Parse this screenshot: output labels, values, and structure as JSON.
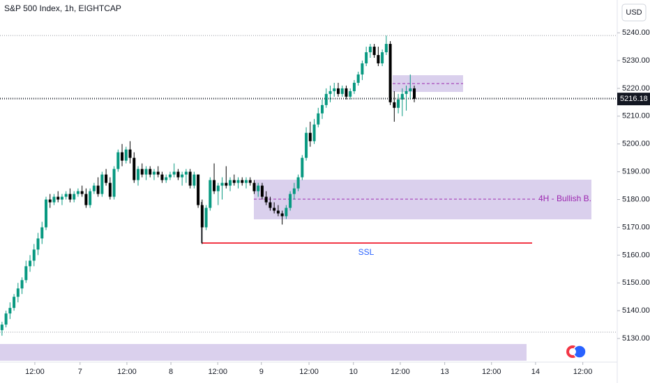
{
  "chart_data": {
    "type": "candlestick",
    "title": "S&P 500 Index, 1h, EIGHTCAP",
    "currency_button": "USD",
    "annotations": [
      "4H - Bullish B.",
      "SSL"
    ],
    "up_color": "#089981",
    "down_color": "#000000",
    "ylim": [
      5121.5,
      5251.8
    ],
    "yticks": [
      {
        "value": 5130,
        "label": "5130.00"
      },
      {
        "value": 5140,
        "label": "5140.00"
      },
      {
        "value": 5150,
        "label": "5150.00"
      },
      {
        "value": 5160,
        "label": "5160.00"
      },
      {
        "value": 5170,
        "label": "5170.00"
      },
      {
        "value": 5180,
        "label": "5180.00"
      },
      {
        "value": 5190,
        "label": "5190.00"
      },
      {
        "value": 5200,
        "label": "5200.00"
      },
      {
        "value": 5210,
        "label": "5210.00"
      },
      {
        "value": 5220,
        "label": "5220.00"
      },
      {
        "value": 5230,
        "label": "5230.00"
      },
      {
        "value": 5240,
        "label": "5240.00"
      }
    ],
    "xlim": [
      0,
      154.2
    ],
    "xticks": [
      {
        "value": 8.7,
        "label": "12:00"
      },
      {
        "value": 20,
        "label": "7"
      },
      {
        "value": 31.7,
        "label": "12:00"
      },
      {
        "value": 42.7,
        "label": "8"
      },
      {
        "value": 54.4,
        "label": "12:00"
      },
      {
        "value": 65.3,
        "label": "9"
      },
      {
        "value": 77.2,
        "label": "12:00"
      },
      {
        "value": 88.3,
        "label": "10"
      },
      {
        "value": 100,
        "label": "12:00"
      },
      {
        "value": 111.1,
        "label": "13"
      },
      {
        "value": 122.8,
        "label": "12:00"
      },
      {
        "value": 133.8,
        "label": "14"
      },
      {
        "value": 145.6,
        "label": "12:00"
      }
    ],
    "candles": [
      [
        5133,
        5136,
        5131,
        5135
      ],
      [
        5135,
        5140,
        5134,
        5139
      ],
      [
        5139,
        5143,
        5137,
        5141
      ],
      [
        5141,
        5146,
        5140,
        5145
      ],
      [
        5145,
        5150,
        5143,
        5148
      ],
      [
        5148,
        5152,
        5146,
        5151
      ],
      [
        5151,
        5158,
        5150,
        5156
      ],
      [
        5156,
        5160,
        5154,
        5158
      ],
      [
        5158,
        5164,
        5156,
        5162
      ],
      [
        5162,
        5168,
        5160,
        5166
      ],
      [
        5166,
        5172,
        5164,
        5170
      ],
      [
        5170,
        5181,
        5169,
        5180
      ],
      [
        5180,
        5182,
        5177,
        5179
      ],
      [
        5179,
        5182,
        5178,
        5181
      ],
      [
        5181,
        5183,
        5179,
        5180
      ],
      [
        5180,
        5182,
        5178,
        5181
      ],
      [
        5181,
        5183,
        5180,
        5182
      ],
      [
        5182,
        5184,
        5179,
        5180
      ],
      [
        5180,
        5183,
        5179,
        5182
      ],
      [
        5182,
        5184,
        5181,
        5183
      ],
      [
        5183,
        5185,
        5181,
        5182
      ],
      [
        5182,
        5184,
        5177,
        5178
      ],
      [
        5178,
        5184,
        5177,
        5183
      ],
      [
        5183,
        5186,
        5182,
        5185
      ],
      [
        5185,
        5188,
        5181,
        5182
      ],
      [
        5182,
        5190,
        5181,
        5189
      ],
      [
        5189,
        5191,
        5185,
        5186
      ],
      [
        5186,
        5188,
        5180,
        5181
      ],
      [
        5181,
        5192,
        5180,
        5191
      ],
      [
        5191,
        5198,
        5190,
        5197
      ],
      [
        5197,
        5200,
        5192,
        5194
      ],
      [
        5194,
        5199,
        5193,
        5198
      ],
      [
        5198,
        5201,
        5193,
        5195
      ],
      [
        5195,
        5197,
        5186,
        5187
      ],
      [
        5187,
        5192,
        5185,
        5191
      ],
      [
        5191,
        5193,
        5188,
        5189
      ],
      [
        5189,
        5192,
        5187,
        5191
      ],
      [
        5191,
        5192,
        5188,
        5189
      ],
      [
        5189,
        5191,
        5187,
        5190
      ],
      [
        5190,
        5192,
        5188,
        5189
      ],
      [
        5189,
        5190,
        5186,
        5187
      ],
      [
        5187,
        5189,
        5186,
        5188
      ],
      [
        5188,
        5190,
        5187,
        5189
      ],
      [
        5189,
        5193,
        5188,
        5190
      ],
      [
        5190,
        5191,
        5187,
        5188
      ],
      [
        5188,
        5190,
        5185,
        5189
      ],
      [
        5189,
        5191,
        5186,
        5190
      ],
      [
        5190,
        5191,
        5184,
        5185
      ],
      [
        5185,
        5190,
        5184,
        5189
      ],
      [
        5189,
        5189,
        5177,
        5178
      ],
      [
        5178,
        5180,
        5164,
        5170
      ],
      [
        5170,
        5178,
        5169,
        5177
      ],
      [
        5177,
        5188,
        5176,
        5187
      ],
      [
        5187,
        5193,
        5182,
        5183
      ],
      [
        5183,
        5186,
        5178,
        5185
      ],
      [
        5185,
        5188,
        5180,
        5186
      ],
      [
        5186,
        5192,
        5184,
        5185
      ],
      [
        5185,
        5188,
        5183,
        5187
      ],
      [
        5187,
        5189,
        5185,
        5186
      ],
      [
        5186,
        5188,
        5184,
        5187
      ],
      [
        5187,
        5188,
        5185,
        5186
      ],
      [
        5186,
        5188,
        5184,
        5187
      ],
      [
        5187,
        5188,
        5185,
        5186
      ],
      [
        5186,
        5187,
        5182,
        5183
      ],
      [
        5183,
        5186,
        5181,
        5185
      ],
      [
        5185,
        5186,
        5180,
        5181
      ],
      [
        5181,
        5183,
        5178,
        5179
      ],
      [
        5179,
        5181,
        5176,
        5177
      ],
      [
        5177,
        5179,
        5175,
        5176
      ],
      [
        5176,
        5178,
        5174,
        5175
      ],
      [
        5175,
        5176,
        5171,
        5174
      ],
      [
        5174,
        5178,
        5173,
        5177
      ],
      [
        5177,
        5183,
        5176,
        5182
      ],
      [
        5182,
        5186,
        5180,
        5184
      ],
      [
        5184,
        5189,
        5183,
        5188
      ],
      [
        5188,
        5196,
        5187,
        5195
      ],
      [
        5195,
        5206,
        5194,
        5204
      ],
      [
        5204,
        5208,
        5199,
        5201
      ],
      [
        5201,
        5209,
        5200,
        5207
      ],
      [
        5207,
        5213,
        5206,
        5211
      ],
      [
        5211,
        5216,
        5209,
        5214
      ],
      [
        5214,
        5220,
        5213,
        5218
      ],
      [
        5218,
        5221,
        5215,
        5219
      ],
      [
        5219,
        5222,
        5217,
        5220
      ],
      [
        5220,
        5222,
        5217,
        5218
      ],
      [
        5218,
        5221,
        5217,
        5220
      ],
      [
        5220,
        5221,
        5216,
        5217
      ],
      [
        5217,
        5220,
        5216,
        5219
      ],
      [
        5219,
        5223,
        5218,
        5222
      ],
      [
        5222,
        5226,
        5221,
        5225
      ],
      [
        5225,
        5230,
        5223,
        5229
      ],
      [
        5229,
        5235,
        5228,
        5233
      ],
      [
        5233,
        5236,
        5231,
        5235
      ],
      [
        5235,
        5236,
        5231,
        5232
      ],
      [
        5232,
        5235,
        5228,
        5229
      ],
      [
        5229,
        5234,
        5228,
        5233
      ],
      [
        5233,
        5239,
        5232,
        5236
      ],
      [
        5236,
        5237,
        5214,
        5215
      ],
      [
        5215,
        5219,
        5208,
        5213
      ],
      [
        5213,
        5218,
        5211,
        5216
      ],
      [
        5216,
        5220,
        5210,
        5218
      ],
      [
        5218,
        5221,
        5212,
        5219
      ],
      [
        5219,
        5225,
        5216,
        5220
      ],
      [
        5220,
        5221,
        5215,
        5216.18
      ]
    ]
  }
}
